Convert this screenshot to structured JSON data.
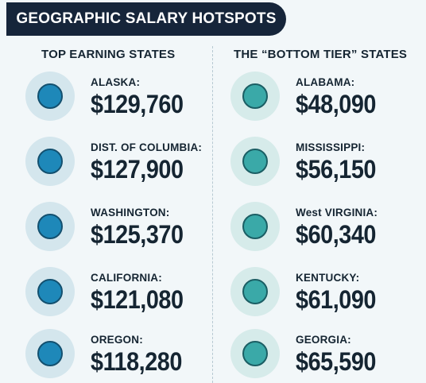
{
  "title": "GEOGRAPHIC SALARY HOTSPOTS",
  "columns": {
    "top": {
      "header": "TOP EARNING STATES",
      "halo_color": "#d4e6ed",
      "dot_color": "#1e88b9",
      "dot_border": "#13506f",
      "items": [
        {
          "label": "ALASKA:",
          "value": "$129,760"
        },
        {
          "label": "DIST. OF COLUMBIA:",
          "value": "$127,900"
        },
        {
          "label": "WASHINGTON:",
          "value": "$125,370"
        },
        {
          "label": "CALIFORNIA:",
          "value": "$121,080"
        },
        {
          "label": "OREGON:",
          "value": "$118,280"
        }
      ]
    },
    "bottom": {
      "header": "THE “BOTTOM TIER” STATES",
      "halo_color": "#d6ebea",
      "dot_color": "#3aa9a8",
      "dot_border": "#1b5e64",
      "items": [
        {
          "label": "ALABAMA:",
          "value": "$48,090"
        },
        {
          "label": "MISSISSIPPI:",
          "value": "$56,150"
        },
        {
          "label": "West VIRGINIA:",
          "value": "$60,340"
        },
        {
          "label": "KENTUCKY:",
          "value": "$61,090"
        },
        {
          "label": "GEORGIA:",
          "value": "$65,590"
        }
      ]
    }
  }
}
